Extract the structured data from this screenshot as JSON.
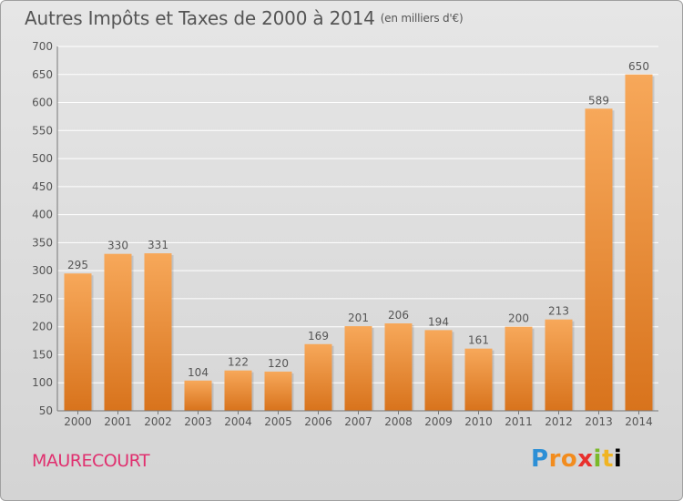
{
  "header": {
    "title": "Autres Impôts et Taxes de 2000 à 2014",
    "unit": "(en milliers d'€)"
  },
  "footer": {
    "commune": "MAURECOURT",
    "brand": "Proxiti"
  },
  "colors": {
    "bar_light": "#f7a85a",
    "bar_dark": "#d8731c",
    "grid": "#ffffff",
    "text": "#555555",
    "commune": "#e0306f"
  },
  "chart_data": {
    "type": "bar",
    "title": "Autres Impôts et Taxes de 2000 à 2014",
    "subtitle": "(en milliers d'€)",
    "xlabel": "",
    "ylabel": "",
    "categories": [
      "2000",
      "2001",
      "2002",
      "2003",
      "2004",
      "2005",
      "2006",
      "2007",
      "2008",
      "2009",
      "2010",
      "2011",
      "2012",
      "2013",
      "2014"
    ],
    "values": [
      295,
      330,
      331,
      104,
      122,
      120,
      169,
      201,
      206,
      194,
      161,
      200,
      213,
      589,
      650
    ],
    "ylim": [
      50,
      700
    ],
    "yticks": [
      50,
      100,
      150,
      200,
      250,
      300,
      350,
      400,
      450,
      500,
      550,
      600,
      650,
      700
    ],
    "grid": true,
    "data_labels": true
  }
}
